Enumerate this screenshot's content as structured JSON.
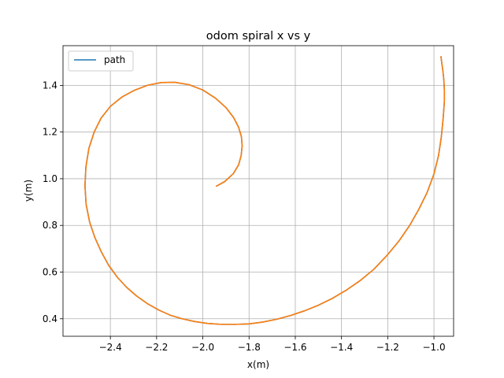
{
  "chart_data": {
    "type": "line",
    "title": "odom spiral x vs y",
    "xlabel": "x(m)",
    "ylabel": "y(m)",
    "xlim": [
      -2.605,
      -0.915
    ],
    "ylim": [
      0.325,
      1.57
    ],
    "xticks": [
      -2.4,
      -2.2,
      -2.0,
      -1.8,
      -1.6,
      -1.4,
      -1.2,
      -1.0
    ],
    "xtick_labels": [
      "−2.4",
      "−2.2",
      "−2.0",
      "−1.8",
      "−1.6",
      "−1.4",
      "−1.2",
      "−1.0"
    ],
    "yticks": [
      0.4,
      0.6,
      0.8,
      1.0,
      1.2,
      1.4
    ],
    "ytick_labels": [
      "0.4",
      "0.6",
      "0.8",
      "1.0",
      "1.2",
      "1.4"
    ],
    "grid": true,
    "legend": {
      "position": "upper-left",
      "entries": [
        "path"
      ]
    },
    "series": [
      {
        "name": "path",
        "color": "#1f77b4",
        "x": [
          -1.943,
          -1.905,
          -1.868,
          -1.845,
          -1.834,
          -1.83,
          -1.833,
          -1.845,
          -1.867,
          -1.9,
          -1.945,
          -2.0,
          -2.06,
          -2.12,
          -2.18,
          -2.24,
          -2.298,
          -2.35,
          -2.4,
          -2.44,
          -2.47,
          -2.493,
          -2.506,
          -2.51,
          -2.505,
          -2.49,
          -2.468,
          -2.44,
          -2.408,
          -2.37,
          -2.33,
          -2.286,
          -2.24,
          -2.19,
          -2.14,
          -2.09,
          -2.035,
          -1.98,
          -1.92,
          -1.86,
          -1.8,
          -1.74,
          -1.68,
          -1.62,
          -1.56,
          -1.5,
          -1.44,
          -1.38,
          -1.32,
          -1.26,
          -1.2,
          -1.15,
          -1.105,
          -1.065,
          -1.03,
          -1.0,
          -0.98,
          -0.968,
          -0.96,
          -0.955,
          -0.955,
          -0.957,
          -0.961,
          -0.966,
          -0.97
        ],
        "y": [
          0.967,
          0.988,
          1.022,
          1.06,
          1.1,
          1.14,
          1.18,
          1.22,
          1.262,
          1.305,
          1.345,
          1.38,
          1.403,
          1.413,
          1.412,
          1.4,
          1.378,
          1.35,
          1.31,
          1.26,
          1.2,
          1.13,
          1.05,
          0.97,
          0.89,
          0.815,
          0.75,
          0.688,
          0.63,
          0.578,
          0.535,
          0.497,
          0.465,
          0.437,
          0.415,
          0.4,
          0.388,
          0.38,
          0.376,
          0.376,
          0.378,
          0.386,
          0.398,
          0.414,
          0.434,
          0.458,
          0.487,
          0.522,
          0.563,
          0.612,
          0.675,
          0.735,
          0.8,
          0.87,
          0.94,
          1.02,
          1.1,
          1.18,
          1.26,
          1.33,
          1.38,
          1.42,
          1.46,
          1.495,
          1.525
        ]
      },
      {
        "color": "#ff7f0e",
        "x": [
          -1.943,
          -1.905,
          -1.868,
          -1.845,
          -1.834,
          -1.83,
          -1.833,
          -1.845,
          -1.867,
          -1.9,
          -1.945,
          -2.0,
          -2.06,
          -2.12,
          -2.18,
          -2.24,
          -2.298,
          -2.35,
          -2.4,
          -2.44,
          -2.47,
          -2.493,
          -2.506,
          -2.51,
          -2.505,
          -2.49,
          -2.468,
          -2.44,
          -2.408,
          -2.37,
          -2.33,
          -2.286,
          -2.24,
          -2.19,
          -2.14,
          -2.09,
          -2.035,
          -1.98,
          -1.92,
          -1.86,
          -1.8,
          -1.74,
          -1.68,
          -1.62,
          -1.56,
          -1.5,
          -1.44,
          -1.38,
          -1.32,
          -1.26,
          -1.2,
          -1.15,
          -1.105,
          -1.065,
          -1.03,
          -1.0,
          -0.98,
          -0.968,
          -0.96,
          -0.955,
          -0.955,
          -0.957,
          -0.961,
          -0.966,
          -0.97
        ],
        "y": [
          0.967,
          0.988,
          1.022,
          1.06,
          1.1,
          1.14,
          1.18,
          1.22,
          1.262,
          1.305,
          1.345,
          1.38,
          1.403,
          1.413,
          1.412,
          1.4,
          1.378,
          1.35,
          1.31,
          1.26,
          1.2,
          1.13,
          1.05,
          0.97,
          0.89,
          0.815,
          0.75,
          0.688,
          0.63,
          0.578,
          0.535,
          0.497,
          0.465,
          0.437,
          0.415,
          0.4,
          0.388,
          0.38,
          0.376,
          0.376,
          0.378,
          0.386,
          0.398,
          0.414,
          0.434,
          0.458,
          0.487,
          0.522,
          0.563,
          0.612,
          0.675,
          0.735,
          0.8,
          0.87,
          0.94,
          1.02,
          1.1,
          1.18,
          1.26,
          1.33,
          1.38,
          1.42,
          1.46,
          1.495,
          1.525
        ]
      }
    ]
  }
}
